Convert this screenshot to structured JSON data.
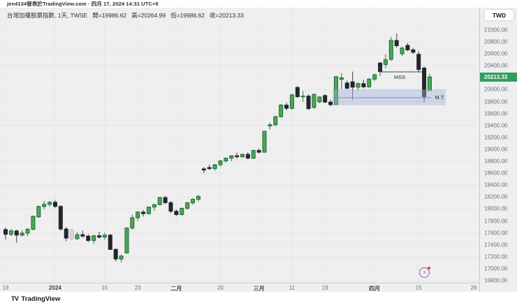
{
  "attribution": {
    "text": "jen4134發表於TradingView.com · 四月 17, 2024 14:31 UTC+8"
  },
  "toolbar": {
    "currency_label": "TWD"
  },
  "legend": {
    "symbol_title": "台灣加權股票指數, 1天, TWSE",
    "open_label": "開=19986.62",
    "high_label": "高=20264.99",
    "low_label": "低=19986.62",
    "close_label": "收=20213.33"
  },
  "annotations": {
    "mss": "MSS",
    "mt": "M.T."
  },
  "price_scale": {
    "current_price_label": "20213.33",
    "tick_labels": [
      "21000.00",
      "20800.00",
      "20600.00",
      "20400.00",
      "20000.00",
      "19800.00",
      "19600.00",
      "19400.00",
      "19200.00",
      "19000.00",
      "18800.00",
      "18600.00",
      "18400.00",
      "18200.00",
      "18000.00",
      "17800.00",
      "17600.00",
      "17400.00",
      "17200.00",
      "17000.00",
      "16800.00"
    ]
  },
  "time_scale": {
    "ticks": [
      {
        "label": "19",
        "index": 0
      },
      {
        "label": "2024",
        "index": 9,
        "strong": true
      },
      {
        "label": "15",
        "index": 18
      },
      {
        "label": "23",
        "index": 24
      },
      {
        "label": "二月",
        "index": 31,
        "strong": true
      },
      {
        "label": "20",
        "index": 39
      },
      {
        "label": "三月",
        "index": 46,
        "strong": true
      },
      {
        "label": "11",
        "index": 52
      },
      {
        "label": "19",
        "index": 58
      },
      {
        "label": "四月",
        "index": 67,
        "strong": true
      },
      {
        "label": "15",
        "index": 75
      },
      {
        "label": "29",
        "index": 85
      }
    ]
  },
  "footer": {
    "brand": "TradingView"
  },
  "colors": {
    "up_fill": "#4ca755",
    "up_border": "#1c6b33",
    "up_wick": "#2f6f3c",
    "down_fill": "#22262b",
    "down_border": "#22262b",
    "down_wick": "#3c3f46",
    "muted_fill": "#d9dade",
    "muted_border": "#bbbdc4",
    "chip_bg": "#2e9e5f",
    "zone_fill": "rgba(158,177,216,0.42)",
    "zone_line": "#7e8eb5",
    "mss_line": "#42454d",
    "accent_purple": "#a64cc4"
  },
  "chart_data": {
    "type": "candlestick",
    "symbol": "台灣加權股票指數",
    "exchange": "TWSE",
    "interval": "1天",
    "ohlc_today": {
      "open": 19986.62,
      "high": 20264.99,
      "low": 19986.62,
      "close": 20213.33
    },
    "last_price": 20213.33,
    "y_axis": {
      "min": 16800,
      "max": 21000,
      "step": 200
    },
    "candles_format": [
      "date",
      "open",
      "high",
      "low",
      "close",
      "muted?"
    ],
    "candles": [
      [
        "2023-12-19",
        17655,
        17690,
        17490,
        17575
      ],
      [
        "2023-12-20",
        17575,
        17662,
        17545,
        17633
      ],
      [
        "2023-12-21",
        17633,
        17652,
        17432,
        17562
      ],
      [
        "2023-12-22",
        17562,
        17645,
        17538,
        17596
      ],
      [
        "2023-12-25",
        17596,
        17682,
        17548,
        17659
      ],
      [
        "2023-12-26",
        17659,
        17890,
        17645,
        17877
      ],
      [
        "2023-12-27",
        17868,
        18056,
        17852,
        18042
      ],
      [
        "2023-12-28",
        18042,
        18136,
        17996,
        18078
      ],
      [
        "2023-12-29",
        18078,
        18132,
        18038,
        18113
      ],
      [
        "2024-01-02",
        18113,
        18152,
        18018,
        18043
      ],
      [
        "2024-01-03",
        18043,
        18064,
        17638,
        17664
      ],
      [
        "2024-01-04",
        17664,
        17700,
        17460,
        17512
      ],
      [
        "2024-01-05",
        17650,
        17668,
        17478,
        17502,
        1
      ],
      [
        "2024-01-08",
        17502,
        17612,
        17480,
        17570
      ],
      [
        "2024-01-09",
        17570,
        17640,
        17518,
        17545
      ],
      [
        "2024-01-10",
        17545,
        17580,
        17442,
        17472
      ],
      [
        "2024-01-11",
        17472,
        17560,
        17415,
        17552
      ],
      [
        "2024-01-12",
        17552,
        17620,
        17505,
        17528
      ],
      [
        "2024-01-15",
        17528,
        17600,
        17488,
        17562
      ],
      [
        "2024-01-16",
        17562,
        17582,
        17312,
        17322
      ],
      [
        "2024-01-17",
        17322,
        17342,
        17120,
        17161
      ],
      [
        "2024-01-18",
        17161,
        17232,
        17105,
        17212
      ],
      [
        "2024-01-19",
        17262,
        17692,
        17255,
        17681
      ],
      [
        "2024-01-22",
        17681,
        17902,
        17652,
        17852
      ],
      [
        "2024-01-23",
        17852,
        17962,
        17802,
        17949
      ],
      [
        "2024-01-24",
        17949,
        17982,
        17872,
        17922
      ],
      [
        "2024-01-25",
        17922,
        18042,
        17906,
        18032
      ],
      [
        "2024-01-26",
        18032,
        18092,
        17966,
        18072
      ],
      [
        "2024-01-29",
        18072,
        18202,
        18062,
        18192
      ],
      [
        "2024-01-30",
        18192,
        18222,
        18082,
        18106
      ],
      [
        "2024-01-31",
        18106,
        18132,
        17932,
        17962
      ],
      [
        "2024-02-01",
        17962,
        17992,
        17882,
        17906
      ],
      [
        "2024-02-02",
        17906,
        18022,
        17892,
        18012
      ],
      [
        "2024-02-05",
        18012,
        18122,
        17986,
        18102
      ],
      [
        "2024-02-06",
        18102,
        18182,
        18072,
        18162
      ],
      [
        "2024-02-07",
        18162,
        18232,
        18122,
        18212
      ],
      [
        "2024-02-15",
        18672,
        18702,
        18602,
        18652
      ],
      [
        "2024-02-16",
        18695,
        18745,
        18655,
        18676
      ],
      [
        "2024-02-19",
        18676,
        18752,
        18642,
        18742
      ],
      [
        "2024-02-20",
        18742,
        18822,
        18712,
        18806
      ],
      [
        "2024-02-21",
        18806,
        18862,
        18772,
        18852
      ],
      [
        "2024-02-22",
        18852,
        18902,
        18802,
        18892
      ],
      [
        "2024-02-23",
        18892,
        18946,
        18842,
        18876
      ],
      [
        "2024-02-26",
        18876,
        18926,
        18856,
        18916
      ],
      [
        "2024-02-27",
        18916,
        18952,
        18832,
        18852
      ],
      [
        "2024-02-29",
        18852,
        18992,
        18836,
        18982
      ],
      [
        "2024-03-01",
        18982,
        19015,
        18930,
        18952
      ],
      [
        "2024-03-04",
        18952,
        19312,
        18942,
        19302
      ],
      [
        "2024-03-05",
        19392,
        19447,
        19332,
        19412
      ],
      [
        "2024-03-06",
        19412,
        19562,
        19382,
        19547
      ],
      [
        "2024-03-07",
        19547,
        19757,
        19532,
        19742
      ],
      [
        "2024-03-08",
        19742,
        19782,
        19652,
        19687
      ],
      [
        "2024-03-11",
        19687,
        19932,
        19667,
        19913
      ],
      [
        "2024-03-12",
        20037,
        20062,
        19862,
        19882
      ],
      [
        "2024-03-13",
        19882,
        19977,
        19797,
        19892
      ],
      [
        "2024-03-14",
        19892,
        19922,
        19662,
        19682
      ],
      [
        "2024-03-15",
        19702,
        19932,
        19682,
        19922
      ],
      [
        "2024-03-18",
        19797,
        19892,
        19772,
        19877
      ],
      [
        "2024-03-19",
        19902,
        19922,
        19777,
        19792
      ],
      [
        "2024-03-20",
        19792,
        19832,
        19722,
        19749
      ],
      [
        "2024-03-21",
        19749,
        20232,
        19742,
        20217
      ],
      [
        "2024-03-22",
        20172,
        20280,
        20008,
        20199
      ],
      [
        "2024-03-25",
        20112,
        20152,
        20012,
        20022
      ],
      [
        "2024-03-26",
        20132,
        20302,
        19832,
        20042
      ],
      [
        "2024-03-27",
        20042,
        20122,
        19992,
        20102
      ],
      [
        "2024-03-28",
        20102,
        20162,
        20022,
        20047
      ],
      [
        "2024-03-29",
        20047,
        20192,
        20032,
        20177
      ],
      [
        "2024-04-01",
        20177,
        20262,
        20142,
        20252
      ],
      [
        "2024-04-02",
        20447,
        20462,
        20232,
        20302
      ],
      [
        "2024-04-03",
        20422,
        20592,
        20362,
        20502
      ],
      [
        "2024-04-08",
        20509,
        20883,
        20482,
        20825
      ],
      [
        "2024-04-09",
        20825,
        20942,
        20702,
        20737
      ],
      [
        "2024-04-10",
        20602,
        20722,
        20562,
        20697
      ],
      [
        "2024-04-11",
        20742,
        20782,
        20642,
        20667
      ],
      [
        "2024-04-12",
        20667,
        20702,
        20602,
        20627
      ],
      [
        "2024-04-15",
        20592,
        20642,
        20302,
        20337
      ],
      [
        "2024-04-16",
        20362,
        20392,
        19783,
        19882
      ],
      [
        "2024-04-17",
        19986.62,
        20264.99,
        19986.62,
        20213.33
      ]
    ],
    "zone": {
      "from_index": 59.4,
      "to_index": 79.9,
      "top_price": 20006,
      "bottom_price": 19737
    },
    "mt_line": {
      "from_index": 59.4,
      "to_index": 77.3,
      "price": 19865
    },
    "mss_line": {
      "from_index": 68.0,
      "to_index": 75.6,
      "price": 20298,
      "tick_top_price": 20392
    }
  }
}
